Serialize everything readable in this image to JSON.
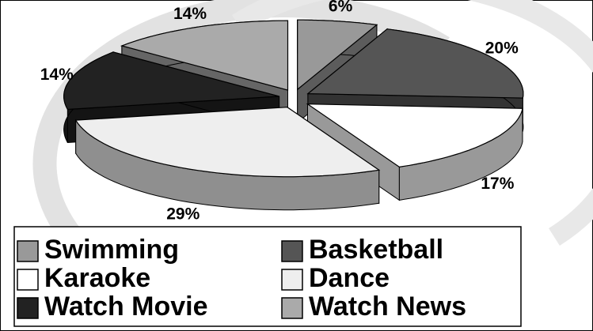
{
  "chart_data": {
    "type": "pie3d",
    "categories": [
      "Swimming",
      "Basketball",
      "Karaoke",
      "Dance",
      "Watch Movie",
      "Watch News"
    ],
    "values": [
      6,
      20,
      17,
      29,
      14,
      14
    ],
    "value_labels": [
      "6%",
      "20%",
      "17%",
      "29%",
      "14%",
      "14%"
    ],
    "colors": [
      "#999999",
      "#555555",
      "#ffffff",
      "#eeeeee",
      "#222222",
      "#aaaaaa"
    ],
    "legend": "bottom"
  }
}
